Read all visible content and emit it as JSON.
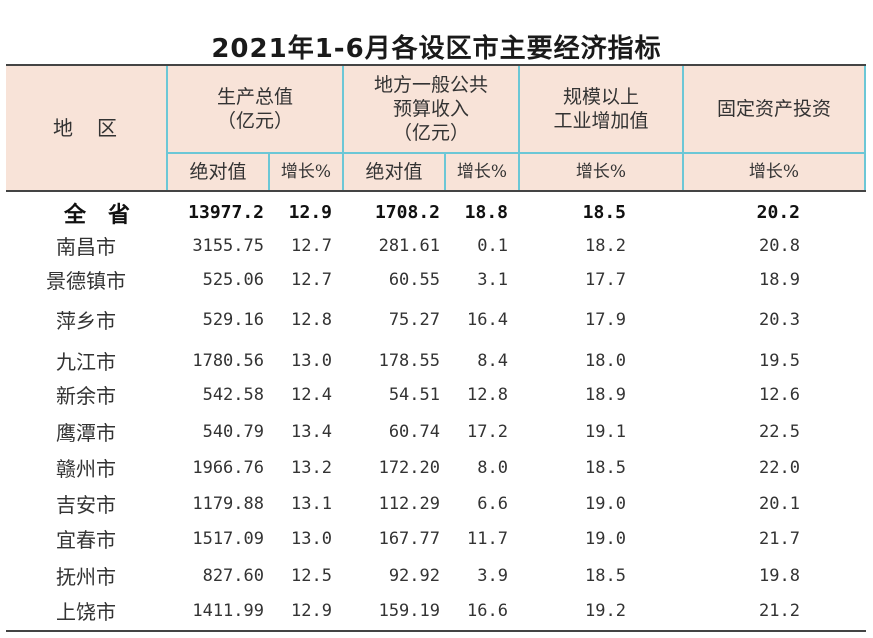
{
  "title": "2021年1-6月各设区市主要经济指标",
  "header": {
    "region": "地　区",
    "gdp": "生产总值\n（亿元）",
    "budget": "地方一般公共\n预算收入\n（亿元）",
    "industry": "规模以上\n工业增加值",
    "investment": "固定资产投资",
    "abs": "绝对值",
    "growth": "增长%"
  },
  "rows": [
    {
      "name": "全省",
      "gdp": "13977.2",
      "gdp_g": "12.9",
      "budget": "1708.2",
      "budget_g": "18.8",
      "ind": "18.5",
      "inv": "20.2"
    },
    {
      "name": "南昌市",
      "gdp": "3155.75",
      "gdp_g": "12.7",
      "budget": "281.61",
      "budget_g": "0.1",
      "ind": "18.2",
      "inv": "20.8"
    },
    {
      "name": "景德镇市",
      "gdp": "525.06",
      "gdp_g": "12.7",
      "budget": "60.55",
      "budget_g": "3.1",
      "ind": "17.7",
      "inv": "18.9"
    },
    {
      "name": "萍乡市",
      "gdp": "529.16",
      "gdp_g": "12.8",
      "budget": "75.27",
      "budget_g": "16.4",
      "ind": "17.9",
      "inv": "20.3"
    },
    {
      "name": "九江市",
      "gdp": "1780.56",
      "gdp_g": "13.0",
      "budget": "178.55",
      "budget_g": "8.4",
      "ind": "18.0",
      "inv": "19.5"
    },
    {
      "name": "新余市",
      "gdp": "542.58",
      "gdp_g": "12.4",
      "budget": "54.51",
      "budget_g": "12.8",
      "ind": "18.9",
      "inv": "12.6"
    },
    {
      "name": "鹰潭市",
      "gdp": "540.79",
      "gdp_g": "13.4",
      "budget": "60.74",
      "budget_g": "17.2",
      "ind": "19.1",
      "inv": "22.5"
    },
    {
      "name": "赣州市",
      "gdp": "1966.76",
      "gdp_g": "13.2",
      "budget": "172.20",
      "budget_g": "8.0",
      "ind": "18.5",
      "inv": "22.0"
    },
    {
      "name": "吉安市",
      "gdp": "1179.88",
      "gdp_g": "13.1",
      "budget": "112.29",
      "budget_g": "6.6",
      "ind": "19.0",
      "inv": "20.1"
    },
    {
      "name": "宜春市",
      "gdp": "1517.09",
      "gdp_g": "13.0",
      "budget": "167.77",
      "budget_g": "11.7",
      "ind": "19.0",
      "inv": "21.7"
    },
    {
      "name": "抚州市",
      "gdp": "827.60",
      "gdp_g": "12.5",
      "budget": "92.92",
      "budget_g": "3.9",
      "ind": "18.5",
      "inv": "19.8"
    },
    {
      "name": "上饶市",
      "gdp": "1411.99",
      "gdp_g": "12.9",
      "budget": "159.19",
      "budget_g": "16.6",
      "ind": "19.2",
      "inv": "21.2"
    }
  ]
}
